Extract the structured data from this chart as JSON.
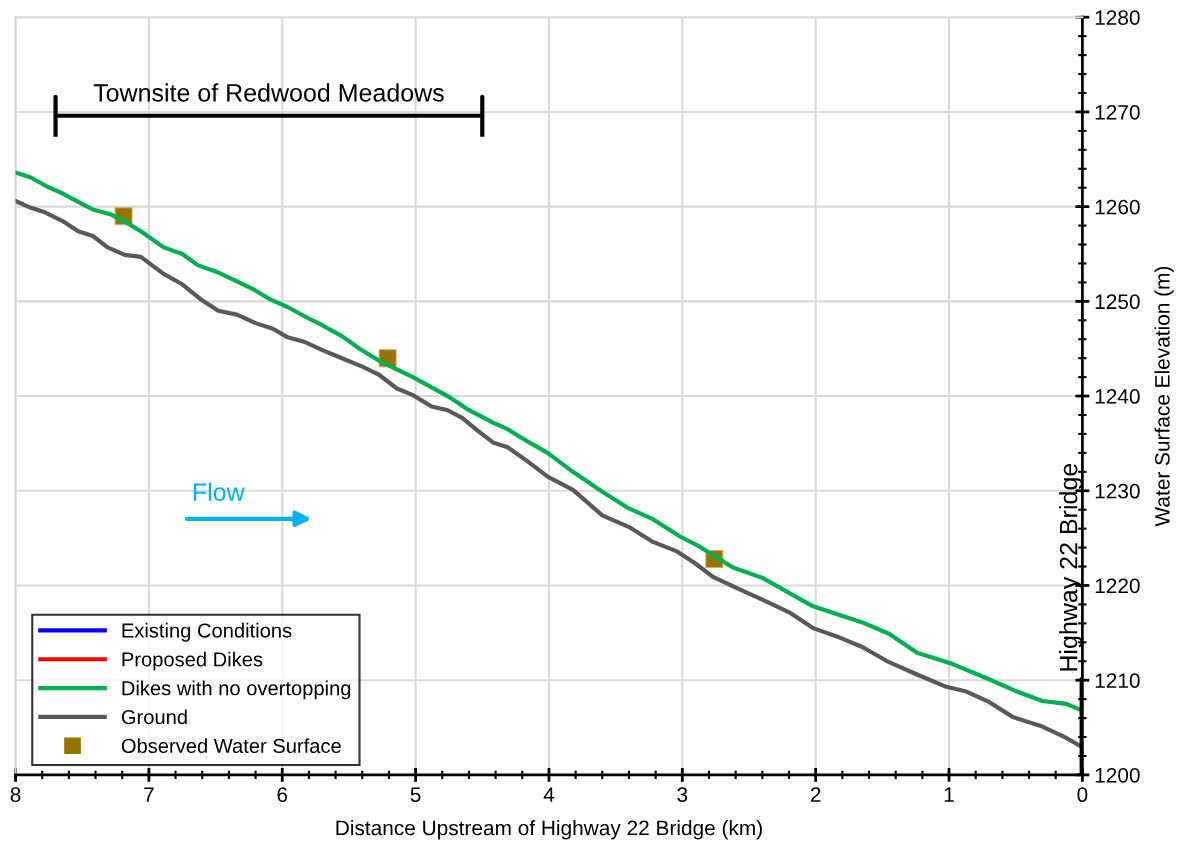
{
  "chart_data": {
    "type": "line",
    "xlabel": "Distance Upstream of Highway 22 Bridge (km)",
    "ylabel": "Water Surface Elevation (m)",
    "xlim": [
      8,
      0
    ],
    "xticks": [
      8,
      7,
      6,
      5,
      4,
      3,
      2,
      1,
      0
    ],
    "ylim": [
      1200,
      1280
    ],
    "yticks": [
      1200,
      1210,
      1220,
      1230,
      1240,
      1250,
      1260,
      1270,
      1280
    ],
    "grid": true,
    "legend": "bottom left",
    "x": [
      8.0,
      7.89,
      7.76,
      7.65,
      7.53,
      7.42,
      7.29,
      7.19,
      7.06,
      6.89,
      6.75,
      6.63,
      6.49,
      6.34,
      6.22,
      6.09,
      5.96,
      5.83,
      5.69,
      5.55,
      5.42,
      5.27,
      5.02,
      4.76,
      4.61,
      4.42,
      4.31,
      4.16,
      4.01,
      3.82,
      3.6,
      3.41,
      3.22,
      3.02,
      2.87,
      2.62,
      2.4,
      2.02,
      1.65,
      1.45,
      1.24,
      0.99,
      0.7,
      0.49,
      0.3,
      0.12,
      0.02
    ],
    "series": [
      {
        "name": "Existing Conditions",
        "color": "#0000ff",
        "values": [
          null,
          null,
          null,
          null,
          null,
          null,
          null,
          null,
          null,
          null,
          null,
          null,
          null,
          null,
          null,
          null,
          null,
          null,
          null,
          null,
          null,
          null,
          null,
          null,
          null,
          null,
          null,
          null,
          null,
          null,
          null,
          null,
          null,
          null,
          null,
          null,
          null,
          null,
          null,
          null,
          null,
          null,
          null,
          null,
          null,
          null,
          null
        ]
      },
      {
        "name": "Proposed Dikes",
        "color": "#ff0000",
        "values": [
          null,
          null,
          null,
          null,
          null,
          null,
          null,
          null,
          null,
          null,
          null,
          null,
          null,
          null,
          null,
          null,
          null,
          null,
          null,
          null,
          null,
          null,
          null,
          null,
          null,
          null,
          null,
          null,
          null,
          null,
          null,
          null,
          null,
          null,
          null,
          null,
          null,
          null,
          null,
          null,
          null,
          null,
          null,
          null,
          null,
          null,
          null
        ]
      },
      {
        "name": "Dikes with no overtopping",
        "color": "#00b050",
        "values": [
          1263.6,
          1263.1,
          1262.1,
          1261.4,
          1260.5,
          1259.7,
          1259.2,
          1258.5,
          1257.4,
          1255.7,
          1255.0,
          1253.8,
          1253.1,
          1252.1,
          1251.3,
          1250.2,
          1249.4,
          1248.4,
          1247.4,
          1246.3,
          1245.0,
          1243.7,
          1242.0,
          1240.0,
          1238.6,
          1237.2,
          1236.5,
          1235.2,
          1234.0,
          1232.0,
          1229.9,
          1228.2,
          1227.0,
          1225.2,
          1224.1,
          1221.9,
          1220.8,
          1217.8,
          1216.1,
          1214.9,
          1212.9,
          1211.8,
          1210.1,
          1208.8,
          1207.8,
          1207.5,
          1206.9
        ]
      },
      {
        "name": "Ground",
        "color": "#595959",
        "x": [
          8.0,
          7.89,
          7.78,
          7.65,
          7.53,
          7.42,
          7.31,
          7.18,
          7.06,
          6.89,
          6.75,
          6.61,
          6.48,
          6.34,
          6.2,
          6.07,
          5.96,
          5.83,
          5.69,
          5.57,
          5.4,
          5.28,
          5.14,
          5.02,
          4.88,
          4.76,
          4.65,
          4.54,
          4.42,
          4.31,
          4.16,
          4.01,
          3.82,
          3.6,
          3.39,
          3.22,
          3.04,
          2.91,
          2.77,
          2.57,
          2.4,
          2.19,
          2.02,
          1.82,
          1.65,
          1.45,
          1.24,
          1.02,
          0.87,
          0.7,
          0.52,
          0.3,
          0.12,
          0.01
        ],
        "values": [
          1260.6,
          1259.9,
          1259.4,
          1258.5,
          1257.4,
          1256.9,
          1255.7,
          1254.9,
          1254.7,
          1252.9,
          1251.8,
          1250.2,
          1249.0,
          1248.6,
          1247.7,
          1247.1,
          1246.2,
          1245.7,
          1244.8,
          1244.1,
          1243.1,
          1242.3,
          1240.8,
          1240.1,
          1238.9,
          1238.5,
          1237.7,
          1236.4,
          1235.1,
          1234.6,
          1233.1,
          1231.5,
          1230.1,
          1227.4,
          1226.1,
          1224.6,
          1223.6,
          1222.4,
          1220.9,
          1219.6,
          1218.5,
          1217.1,
          1215.5,
          1214.5,
          1213.5,
          1211.9,
          1210.6,
          1209.3,
          1208.8,
          1207.7,
          1206.1,
          1205.1,
          1203.9,
          1203.0
        ]
      },
      {
        "name": "Observed Water Surface",
        "type": "scatter",
        "marker": "square",
        "color": "#997300",
        "x": [
          7.19,
          5.21,
          2.76
        ],
        "values": [
          1259.0,
          1244.0,
          1222.8
        ]
      }
    ],
    "ref_lines": [
      {
        "axis": "x",
        "value": 0,
        "label": "Highway 22 Bridge",
        "color": "#000000"
      }
    ],
    "annotations": [
      "Townsite of Redwood Meadows",
      "Flow"
    ]
  }
}
